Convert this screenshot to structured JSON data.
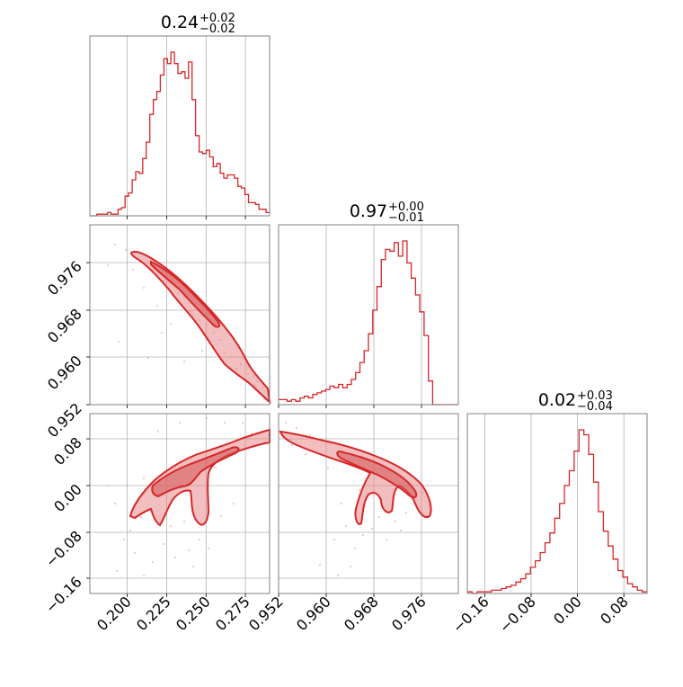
{
  "colors": {
    "accent": "#d62728",
    "accent_fill": "#e8898a",
    "scatter": "#f2b6b6",
    "frame": "#808080",
    "grid": "#b0b0b0"
  },
  "chart_data": {
    "type": "corner",
    "parameters": [
      {
        "xlim": [
          0.176,
          0.29
        ],
        "ticks": [
          0.2,
          0.225,
          0.25,
          0.275
        ],
        "tick_labels": [
          "0.200",
          "0.225",
          "0.250",
          "0.275"
        ],
        "summary": {
          "median": "0.24",
          "plus": "+0.02",
          "minus": "−0.02"
        }
      },
      {
        "xlim": [
          0.952,
          0.9825
        ],
        "ticks": [
          0.952,
          0.96,
          0.968,
          0.976
        ],
        "tick_labels": [
          "0.952",
          "0.960",
          "0.968",
          "0.976"
        ],
        "summary": {
          "median": "0.97",
          "plus": "+0.00",
          "minus": "−0.01"
        }
      },
      {
        "xlim": [
          -0.19,
          0.12
        ],
        "ticks": [
          -0.16,
          -0.08,
          0.0,
          0.08
        ],
        "tick_labels": [
          "−0.16",
          "−0.08",
          "0.00",
          "0.08"
        ],
        "summary": {
          "median": "0.02",
          "plus": "+0.03",
          "minus": "−0.04"
        }
      }
    ],
    "histograms": [
      {
        "param": 0,
        "edges": [
          0.176,
          0.29
        ],
        "counts": [
          0,
          0,
          1,
          1,
          1,
          2,
          1,
          1,
          4,
          5,
          12,
          14,
          22,
          27,
          26,
          35,
          45,
          62,
          71,
          76,
          86,
          96,
          93,
          100,
          93,
          87,
          88,
          84,
          94,
          71,
          49,
          39,
          38,
          40,
          36,
          30,
          32,
          26,
          23,
          25,
          25,
          23,
          18,
          17,
          13,
          8,
          8,
          7,
          4,
          4,
          2
        ]
      },
      {
        "param": 1,
        "edges": [
          0.952,
          0.9825
        ],
        "counts": [
          3,
          3,
          2,
          3,
          2,
          4,
          5,
          4,
          6,
          7,
          8,
          9,
          11,
          10,
          12,
          10,
          12,
          15,
          19,
          25,
          32,
          42,
          56,
          70,
          86,
          92,
          91,
          96,
          88,
          97,
          84,
          75,
          65,
          55,
          41,
          14,
          0,
          0,
          0,
          0,
          0,
          0
        ]
      },
      {
        "param": 2,
        "edges": [
          -0.19,
          0.12
        ],
        "counts": [
          1,
          0,
          1,
          1,
          1,
          2,
          2,
          3,
          4,
          5,
          7,
          9,
          12,
          16,
          20,
          25,
          31,
          37,
          46,
          55,
          66,
          75,
          87,
          100,
          97,
          85,
          68,
          50,
          38,
          29,
          21,
          14,
          10,
          6,
          4,
          2,
          1
        ]
      }
    ],
    "contour_panels": [
      {
        "x_param": 0,
        "y_param": 1
      },
      {
        "x_param": 0,
        "y_param": 2
      },
      {
        "x_param": 1,
        "y_param": 2
      }
    ]
  }
}
